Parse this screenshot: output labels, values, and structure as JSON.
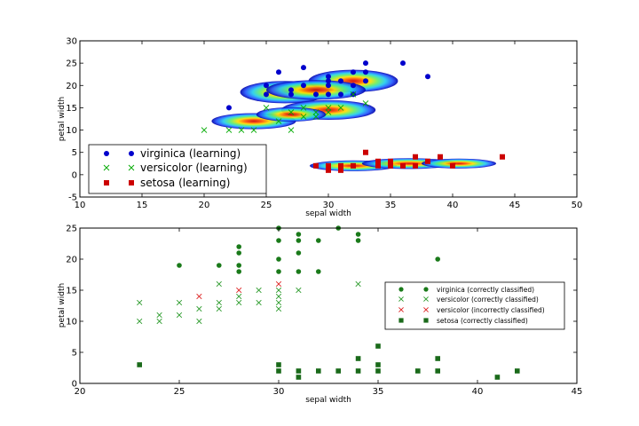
{
  "chart_data": [
    {
      "type": "scatter",
      "xlabel": "sepal width",
      "ylabel": "petal width",
      "xlim": [
        10,
        50
      ],
      "ylim": [
        -5,
        30
      ],
      "xticks": [
        10,
        15,
        20,
        25,
        30,
        35,
        40,
        45,
        50
      ],
      "yticks": [
        -5,
        0,
        5,
        10,
        15,
        20,
        25,
        30
      ],
      "legend_placement": "lower-left",
      "density_contours": true,
      "series": [
        {
          "name": "virginica (learning)",
          "marker": "circle",
          "color": "#0000cc",
          "points": [
            [
              22,
              15
            ],
            [
              25,
              18
            ],
            [
              25,
              20
            ],
            [
              26,
              23
            ],
            [
              27,
              18
            ],
            [
              27,
              19
            ],
            [
              28,
              24
            ],
            [
              28,
              20
            ],
            [
              29,
              18
            ],
            [
              30,
              18
            ],
            [
              30,
              20
            ],
            [
              30,
              21
            ],
            [
              30,
              22
            ],
            [
              31,
              21
            ],
            [
              31,
              18
            ],
            [
              32,
              23
            ],
            [
              32,
              20
            ],
            [
              32,
              18
            ],
            [
              33,
              25
            ],
            [
              33,
              21
            ],
            [
              33,
              23
            ],
            [
              36,
              25
            ],
            [
              38,
              22
            ]
          ]
        },
        {
          "name": "versicolor (learning)",
          "marker": "x",
          "color": "#00aa00",
          "points": [
            [
              20,
              10
            ],
            [
              22,
              10
            ],
            [
              23,
              10
            ],
            [
              24,
              10
            ],
            [
              25,
              15
            ],
            [
              26,
              12
            ],
            [
              27,
              10
            ],
            [
              27,
              14
            ],
            [
              28,
              13
            ],
            [
              28,
              15
            ],
            [
              29,
              13
            ],
            [
              29,
              14
            ],
            [
              30,
              14
            ],
            [
              30,
              15
            ],
            [
              31,
              15
            ],
            [
              32,
              18
            ],
            [
              33,
              16
            ]
          ]
        },
        {
          "name": "setosa (learning)",
          "marker": "square",
          "color": "#cc0000",
          "points": [
            [
              29,
              2
            ],
            [
              30,
              1
            ],
            [
              30,
              2
            ],
            [
              31,
              1
            ],
            [
              31,
              2
            ],
            [
              32,
              2
            ],
            [
              33,
              5
            ],
            [
              34,
              2
            ],
            [
              34,
              3
            ],
            [
              35,
              2
            ],
            [
              35,
              3
            ],
            [
              36,
              2
            ],
            [
              37,
              2
            ],
            [
              37,
              4
            ],
            [
              38,
              3
            ],
            [
              39,
              4
            ],
            [
              40,
              2
            ],
            [
              44,
              4
            ]
          ]
        }
      ]
    },
    {
      "type": "scatter",
      "xlabel": "sepal width",
      "ylabel": "petal width",
      "xlim": [
        20,
        45
      ],
      "ylim": [
        0,
        25
      ],
      "xticks": [
        20,
        25,
        30,
        35,
        40,
        45
      ],
      "yticks": [
        0,
        5,
        10,
        15,
        20,
        25
      ],
      "legend_placement": "center-right",
      "series": [
        {
          "name": "virginica (correctly classified)",
          "marker": "circle",
          "color": "#1a7a1a",
          "points": [
            [
              25,
              19
            ],
            [
              27,
              19
            ],
            [
              28,
              18
            ],
            [
              28,
              19
            ],
            [
              28,
              21
            ],
            [
              28,
              22
            ],
            [
              30,
              18
            ],
            [
              30,
              20
            ],
            [
              30,
              23
            ],
            [
              30,
              25
            ],
            [
              31,
              18
            ],
            [
              31,
              21
            ],
            [
              31,
              23
            ],
            [
              31,
              24
            ],
            [
              32,
              18
            ],
            [
              32,
              23
            ],
            [
              33,
              25
            ],
            [
              34,
              23
            ],
            [
              34,
              24
            ],
            [
              38,
              20
            ]
          ]
        },
        {
          "name": "versicolor (correctly classified)",
          "marker": "x",
          "color": "#2a9a2a",
          "points": [
            [
              23,
              10
            ],
            [
              23,
              13
            ],
            [
              24,
              10
            ],
            [
              24,
              11
            ],
            [
              25,
              11
            ],
            [
              25,
              13
            ],
            [
              26,
              10
            ],
            [
              26,
              12
            ],
            [
              27,
              12
            ],
            [
              27,
              13
            ],
            [
              27,
              16
            ],
            [
              28,
              13
            ],
            [
              28,
              14
            ],
            [
              29,
              13
            ],
            [
              29,
              15
            ],
            [
              30,
              12
            ],
            [
              30,
              13
            ],
            [
              30,
              14
            ],
            [
              30,
              15
            ],
            [
              31,
              15
            ],
            [
              34,
              16
            ]
          ]
        },
        {
          "name": "versicolor (incorrectly classified)",
          "marker": "x",
          "color": "#dd2222",
          "points": [
            [
              26,
              14
            ],
            [
              28,
              15
            ],
            [
              30,
              16
            ]
          ]
        },
        {
          "name": "setosa (correctly classified)",
          "marker": "square",
          "color": "#1a6a1a",
          "points": [
            [
              23,
              3
            ],
            [
              30,
              2
            ],
            [
              30,
              3
            ],
            [
              31,
              1
            ],
            [
              31,
              2
            ],
            [
              32,
              2
            ],
            [
              33,
              2
            ],
            [
              34,
              2
            ],
            [
              34,
              4
            ],
            [
              35,
              2
            ],
            [
              35,
              3
            ],
            [
              35,
              6
            ],
            [
              37,
              2
            ],
            [
              38,
              2
            ],
            [
              38,
              4
            ],
            [
              41,
              1
            ],
            [
              42,
              2
            ]
          ]
        }
      ]
    }
  ]
}
